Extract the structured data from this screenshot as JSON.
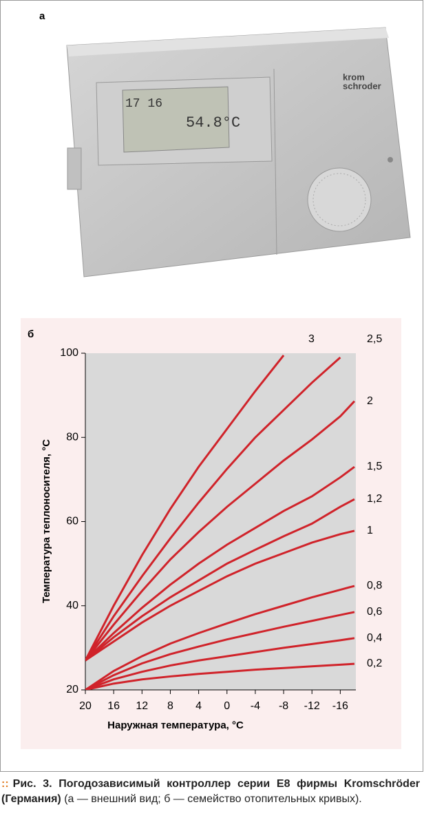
{
  "panel_a": {
    "label": "а"
  },
  "photo": {
    "display_time": "17 16",
    "display_temp": "54.8°C",
    "brand": [
      "krom",
      "schroder"
    ]
  },
  "chart_data": {
    "type": "line",
    "panel_label": "б",
    "x_label": "Наружная температура, °C",
    "y_label": "Температура теплоносителя, °C",
    "x": [
      20,
      16,
      12,
      8,
      4,
      0,
      -4,
      -8,
      -12,
      -16,
      -18
    ],
    "xlim": [
      20,
      -18.2
    ],
    "xticks": [
      20,
      16,
      12,
      8,
      4,
      0,
      -4,
      -8,
      -12,
      -16
    ],
    "ylim": [
      20,
      100
    ],
    "yticks": [
      20,
      40,
      60,
      80,
      100
    ],
    "grid": false,
    "series": [
      {
        "name": "0,2",
        "color": "#d0232a",
        "values": [
          20,
          21.5,
          22.5,
          23.2,
          23.8,
          24.3,
          24.8,
          25.2,
          25.6,
          26,
          26.2
        ]
      },
      {
        "name": "0,4",
        "color": "#d0232a",
        "values": [
          20,
          22.5,
          24.3,
          25.8,
          27,
          28,
          29,
          30,
          30.9,
          31.8,
          32.3
        ]
      },
      {
        "name": "0,6",
        "color": "#d0232a",
        "values": [
          20,
          23.5,
          26.3,
          28.5,
          30.3,
          32,
          33.5,
          35,
          36.4,
          37.8,
          38.5
        ]
      },
      {
        "name": "0,8",
        "color": "#d0232a",
        "values": [
          20,
          24.5,
          28,
          31,
          33.5,
          35.8,
          38,
          40,
          42,
          43.8,
          44.7
        ]
      },
      {
        "name": "1",
        "color": "#d0232a",
        "values": [
          27,
          31.5,
          36,
          40,
          43.5,
          47,
          50,
          52.5,
          55,
          57,
          57.8
        ]
      },
      {
        "name": "1,2",
        "color": "#d0232a",
        "values": [
          27,
          32.5,
          37.5,
          42,
          46,
          50,
          53.3,
          56.5,
          59.5,
          63.5,
          65.3
        ]
      },
      {
        "name": "1,5",
        "color": "#d0232a",
        "values": [
          27,
          33.5,
          39.5,
          45,
          50,
          54.5,
          58.5,
          62.5,
          66,
          70.5,
          73
        ]
      },
      {
        "name": "2",
        "color": "#d0232a",
        "values": [
          27,
          35.5,
          43.5,
          51,
          57.5,
          63.5,
          69,
          74.5,
          79.5,
          85,
          88.6
        ]
      },
      {
        "name": "2,5",
        "color": "#d0232a",
        "values": [
          27,
          37.5,
          47,
          56,
          64.5,
          72.5,
          80,
          86.5,
          93,
          99,
          null
        ]
      },
      {
        "name": "3",
        "color": "#d0232a",
        "values": [
          27,
          40,
          52,
          63,
          73,
          82,
          91,
          99.5,
          null,
          null,
          null
        ]
      }
    ]
  },
  "caption": {
    "marker": "::",
    "lead": "Рис. 3. Погодозависимый контроллер серии E8 фирмы Kromschröder (Германия)",
    "text": "(а — внешний вид; б — семейство отопительных кривых)."
  }
}
